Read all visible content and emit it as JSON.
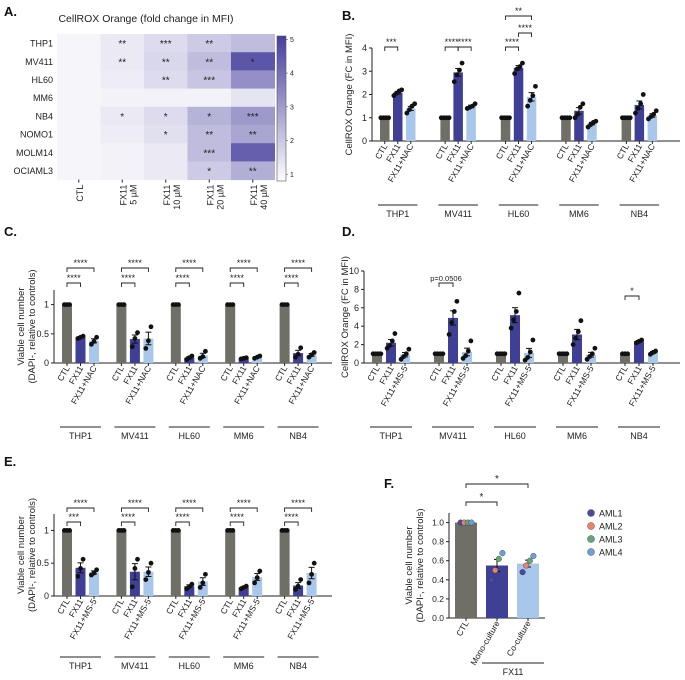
{
  "panels": {
    "A": "A.",
    "B": "B.",
    "C": "C.",
    "D": "D.",
    "E": "E.",
    "F": "F."
  },
  "chart_data": [
    {
      "panel": "A",
      "type": "heatmap",
      "title": "CellROX Orange (fold change in MFI)",
      "rows": [
        "THP1",
        "MV411",
        "HL60",
        "MM6",
        "NB4",
        "NOMO1",
        "MOLM14",
        "OCIAML3"
      ],
      "columns": [
        "CTL",
        "FX11\n5 µM",
        "FX11\n10 µM",
        "FX11\n20 µM",
        "FX11\n40 µM"
      ],
      "values": [
        [
          1.0,
          1.3,
          1.6,
          2.0,
          2.3
        ],
        [
          1.0,
          1.3,
          1.7,
          2.3,
          4.6
        ],
        [
          1.0,
          1.2,
          1.6,
          2.1,
          3.3
        ],
        [
          1.0,
          1.1,
          1.1,
          1.1,
          1.4
        ],
        [
          1.0,
          1.3,
          1.6,
          2.5,
          3.1
        ],
        [
          1.0,
          1.2,
          1.5,
          2.3,
          2.8
        ],
        [
          1.0,
          1.1,
          1.3,
          2.3,
          4.4
        ],
        [
          1.0,
          1.1,
          1.3,
          2.0,
          2.6
        ]
      ],
      "annotations": [
        [
          "",
          "**",
          "***",
          "**",
          ""
        ],
        [
          "",
          "**",
          "**",
          "**",
          "*"
        ],
        [
          "",
          "",
          "**",
          "***",
          ""
        ],
        [
          "",
          "",
          "",
          "",
          ""
        ],
        [
          "",
          "*",
          "*",
          "*",
          "***"
        ],
        [
          "",
          "",
          "*",
          "**",
          "**"
        ],
        [
          "",
          "",
          "",
          "***",
          ""
        ],
        [
          "",
          "",
          "",
          "*",
          "**"
        ]
      ],
      "colorbar_ticks": [
        1,
        2,
        3,
        4,
        5
      ],
      "vmin": 0.8,
      "vmax": 5.1
    },
    {
      "panel": "B",
      "type": "bar",
      "ylabel": "CellROX Orange (FC in MFI)",
      "ylim": [
        0,
        4
      ],
      "yticks": [
        0,
        1,
        2,
        3,
        4
      ],
      "conditions": [
        "CTL",
        "FX11",
        "FX11+NAC"
      ],
      "groups": [
        {
          "name": "THP1",
          "means": [
            1.0,
            2.08,
            1.4
          ],
          "points": [
            [
              1,
              1,
              1,
              1
            ],
            [
              1.95,
              2.05,
              2.15,
              2.2
            ],
            [
              1.2,
              1.35,
              1.5,
              1.6
            ]
          ]
        },
        {
          "name": "MV411",
          "means": [
            1.0,
            2.95,
            1.5
          ],
          "points": [
            [
              1,
              1,
              1,
              1
            ],
            [
              2.55,
              2.85,
              3.05,
              3.35
            ],
            [
              1.4,
              1.45,
              1.5,
              1.6
            ]
          ]
        },
        {
          "name": "HL60",
          "means": [
            1.0,
            3.15,
            1.9
          ],
          "points": [
            [
              1,
              1,
              1,
              1
            ],
            [
              2.9,
              3.1,
              3.2,
              3.35
            ],
            [
              1.5,
              1.75,
              1.95,
              2.35
            ]
          ]
        },
        {
          "name": "MM6",
          "means": [
            1.0,
            1.3,
            0.75
          ],
          "points": [
            [
              1,
              1,
              1,
              1
            ],
            [
              1.0,
              1.15,
              1.45,
              1.6
            ],
            [
              0.6,
              0.7,
              0.8,
              0.85
            ]
          ]
        },
        {
          "name": "NB4",
          "means": [
            1.0,
            1.55,
            1.1
          ],
          "points": [
            [
              1,
              1,
              1,
              1
            ],
            [
              1.2,
              1.4,
              1.6,
              2.0
            ],
            [
              0.95,
              1.05,
              1.15,
              1.3
            ]
          ]
        }
      ],
      "significance": [
        {
          "group": "THP1",
          "from": 0,
          "to": 1,
          "label": "***"
        },
        {
          "group": "MV411",
          "from": 0,
          "to": 1,
          "label": "****"
        },
        {
          "group": "MV411",
          "from": 1,
          "to": 2,
          "label": "****"
        },
        {
          "group": "HL60",
          "from": 0,
          "to": 1,
          "label": "****"
        },
        {
          "group": "HL60",
          "from": 1,
          "to": 2,
          "label": "****"
        },
        {
          "group": "HL60",
          "from": 0,
          "to": 2,
          "label": "**"
        }
      ]
    },
    {
      "panel": "C",
      "type": "bar",
      "ylabel": "Viable cell number\n(DAPI-, relative to controls)",
      "ylim": [
        0,
        1.25
      ],
      "yticks": [
        0,
        0.5,
        1
      ],
      "conditions": [
        "CTL",
        "FX11",
        "FX11+NAC"
      ],
      "groups": [
        {
          "name": "THP1",
          "means": [
            1.0,
            0.44,
            0.38
          ],
          "points": [
            [
              1,
              1,
              1
            ],
            [
              0.42,
              0.44,
              0.46
            ],
            [
              0.32,
              0.37,
              0.44
            ]
          ]
        },
        {
          "name": "MV411",
          "means": [
            1.0,
            0.41,
            0.42
          ],
          "points": [
            [
              1,
              1,
              1
            ],
            [
              0.28,
              0.42,
              0.52
            ],
            [
              0.25,
              0.38,
              0.62
            ]
          ]
        },
        {
          "name": "HL60",
          "means": [
            1.0,
            0.09,
            0.13
          ],
          "points": [
            [
              1,
              1,
              1
            ],
            [
              0.06,
              0.09,
              0.12
            ],
            [
              0.08,
              0.11,
              0.2
            ]
          ]
        },
        {
          "name": "MM6",
          "means": [
            1.0,
            0.08,
            0.1
          ],
          "points": [
            [
              1,
              1,
              1
            ],
            [
              0.07,
              0.08,
              0.09
            ],
            [
              0.08,
              0.1,
              0.12
            ]
          ]
        },
        {
          "name": "NB4",
          "means": [
            1.0,
            0.17,
            0.14
          ],
          "points": [
            [
              1,
              1,
              1
            ],
            [
              0.1,
              0.15,
              0.26
            ],
            [
              0.1,
              0.14,
              0.18
            ]
          ]
        }
      ],
      "significance": [
        {
          "group": "THP1",
          "from": 0,
          "to": 1,
          "label": "****"
        },
        {
          "group": "THP1",
          "from": 0,
          "to": 2,
          "label": "****"
        },
        {
          "group": "MV411",
          "from": 0,
          "to": 1,
          "label": "****"
        },
        {
          "group": "MV411",
          "from": 0,
          "to": 2,
          "label": "****"
        },
        {
          "group": "HL60",
          "from": 0,
          "to": 1,
          "label": "****"
        },
        {
          "group": "HL60",
          "from": 0,
          "to": 2,
          "label": "****"
        },
        {
          "group": "MM6",
          "from": 0,
          "to": 1,
          "label": "****"
        },
        {
          "group": "MM6",
          "from": 0,
          "to": 2,
          "label": "****"
        },
        {
          "group": "NB4",
          "from": 0,
          "to": 1,
          "label": "****"
        },
        {
          "group": "NB4",
          "from": 0,
          "to": 2,
          "label": "****"
        }
      ]
    },
    {
      "panel": "D",
      "type": "bar",
      "ylabel": "CellROX Orange (FC in MFI)",
      "ylim": [
        0,
        10
      ],
      "yticks": [
        0,
        2,
        4,
        6,
        8,
        10
      ],
      "conditions": [
        "CTL",
        "FX11",
        "FX11+MS-5"
      ],
      "groups": [
        {
          "name": "THP1",
          "means": [
            1.0,
            2.2,
            0.9
          ],
          "points": [
            [
              1,
              1,
              1,
              1
            ],
            [
              1.6,
              1.9,
              2.4,
              3.2
            ],
            [
              0.4,
              0.7,
              1.0,
              1.5
            ]
          ]
        },
        {
          "name": "MV411",
          "means": [
            1.0,
            4.9,
            1.2
          ],
          "points": [
            [
              1,
              1,
              1,
              1
            ],
            [
              3.1,
              4.4,
              5.6,
              6.7
            ],
            [
              0.5,
              0.8,
              1.3,
              2.4
            ]
          ]
        },
        {
          "name": "HL60",
          "means": [
            1.0,
            5.2,
            1.1
          ],
          "points": [
            [
              1,
              1,
              1,
              1
            ],
            [
              3.8,
              4.7,
              5.6,
              7.6
            ],
            [
              0.3,
              0.6,
              1.2,
              2.5
            ]
          ]
        },
        {
          "name": "MM6",
          "means": [
            1.0,
            3.1,
            0.9
          ],
          "points": [
            [
              1,
              1,
              1,
              1
            ],
            [
              2.0,
              2.7,
              3.4,
              4.6
            ],
            [
              0.4,
              0.7,
              1.0,
              1.6
            ]
          ]
        },
        {
          "name": "NB4",
          "means": [
            1.0,
            2.35,
            1.15
          ],
          "points": [
            [
              1,
              1,
              1
            ],
            [
              2.2,
              2.35,
              2.5
            ],
            [
              0.95,
              1.15,
              1.3
            ]
          ]
        }
      ],
      "significance": [
        {
          "group": "MV411",
          "from": 0,
          "to": 1,
          "label": "p=0.0506"
        },
        {
          "group": "NB4",
          "from": 0,
          "to": 1,
          "label": "*"
        }
      ]
    },
    {
      "panel": "E",
      "type": "bar",
      "ylabel": "Viable cell number\n(DAPI-, relative to controls)",
      "ylim": [
        0,
        1.25
      ],
      "yticks": [
        0,
        0.5,
        1
      ],
      "conditions": [
        "CTL",
        "FX11",
        "FX11+MS-5"
      ],
      "groups": [
        {
          "name": "THP1",
          "means": [
            1.0,
            0.43,
            0.36
          ],
          "points": [
            [
              1,
              1,
              1
            ],
            [
              0.3,
              0.42,
              0.56
            ],
            [
              0.32,
              0.35,
              0.4
            ]
          ]
        },
        {
          "name": "MV411",
          "means": [
            1.0,
            0.37,
            0.37
          ],
          "points": [
            [
              1,
              1,
              1
            ],
            [
              0.14,
              0.42,
              0.56
            ],
            [
              0.25,
              0.36,
              0.5
            ]
          ]
        },
        {
          "name": "HL60",
          "means": [
            1.0,
            0.15,
            0.22
          ],
          "points": [
            [
              1,
              1,
              1
            ],
            [
              0.11,
              0.14,
              0.18
            ],
            [
              0.13,
              0.2,
              0.33
            ]
          ]
        },
        {
          "name": "MM6",
          "means": [
            1.0,
            0.13,
            0.29
          ],
          "points": [
            [
              1,
              1,
              1
            ],
            [
              0.11,
              0.13,
              0.15
            ],
            [
              0.2,
              0.28,
              0.38
            ]
          ]
        },
        {
          "name": "NB4",
          "means": [
            1.0,
            0.16,
            0.35
          ],
          "points": [
            [
              1,
              1,
              1
            ],
            [
              0.1,
              0.15,
              0.25
            ],
            [
              0.2,
              0.33,
              0.5
            ]
          ]
        }
      ],
      "significance": [
        {
          "group": "THP1",
          "from": 0,
          "to": 1,
          "label": "***"
        },
        {
          "group": "THP1",
          "from": 0,
          "to": 2,
          "label": "****"
        },
        {
          "group": "MV411",
          "from": 0,
          "to": 1,
          "label": "****"
        },
        {
          "group": "MV411",
          "from": 0,
          "to": 2,
          "label": "****"
        },
        {
          "group": "HL60",
          "from": 0,
          "to": 1,
          "label": "****"
        },
        {
          "group": "HL60",
          "from": 0,
          "to": 2,
          "label": "****"
        },
        {
          "group": "MM6",
          "from": 0,
          "to": 1,
          "label": "****"
        },
        {
          "group": "MM6",
          "from": 0,
          "to": 2,
          "label": "****"
        },
        {
          "group": "NB4",
          "from": 0,
          "to": 1,
          "label": "****"
        },
        {
          "group": "NB4",
          "from": 0,
          "to": 2,
          "label": "****"
        }
      ]
    },
    {
      "panel": "F",
      "type": "bar",
      "ylabel": "Viable cell number\n(DAPI-, relative to controls)",
      "ylim": [
        0,
        1.1
      ],
      "yticks": [
        0.0,
        0.2,
        0.4,
        0.6,
        0.8,
        1.0
      ],
      "categories": [
        "CTL",
        "Mono-culture",
        "Co-culture"
      ],
      "group_label": "FX11",
      "means": [
        1.0,
        0.55,
        0.57
      ],
      "points": [
        [
          1.0,
          1.0,
          1.0,
          1.0
        ],
        [
          0.4,
          0.5,
          0.62,
          0.68
        ],
        [
          0.48,
          0.55,
          0.6,
          0.65
        ]
      ],
      "legend": [
        "AML1",
        "AML2",
        "AML3",
        "AML4"
      ],
      "legend_colors": [
        "#4a4aa0",
        "#e9826f",
        "#63a77a",
        "#6f9fd8"
      ],
      "significance": [
        {
          "from": 0,
          "to": 1,
          "label": "*"
        },
        {
          "from": 0,
          "to": 2,
          "label": "*"
        }
      ]
    }
  ],
  "colors": {
    "ctl": "#6f6f67",
    "fx11": "#3f3f96",
    "treat": "#a9c7ea",
    "point": "#111111"
  }
}
